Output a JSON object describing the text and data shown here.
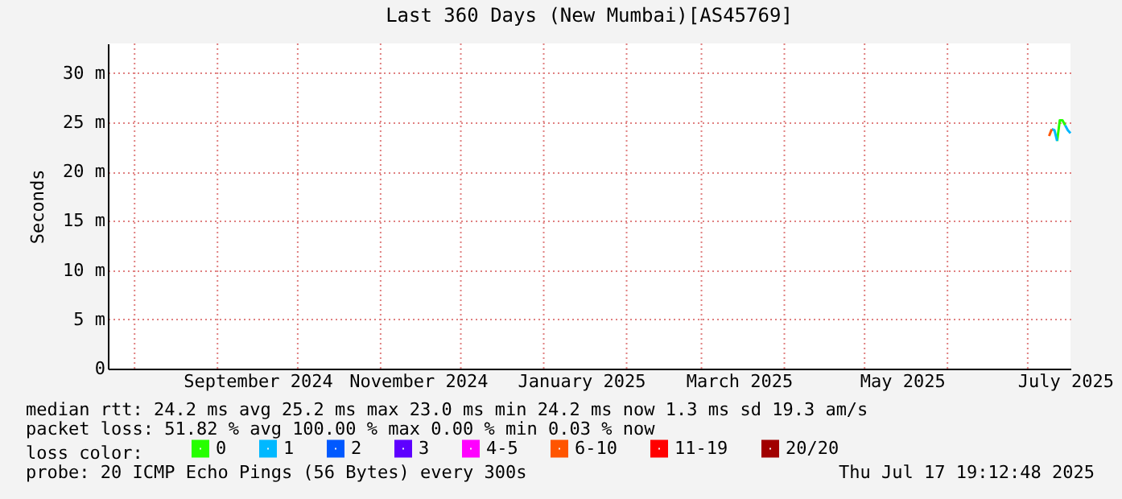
{
  "chart_data": {
    "type": "line",
    "title": "Last 360 Days (New Mumbai)[AS45769]",
    "ylabel": "Seconds",
    "legend_title": "loss color:",
    "legend": "bottom",
    "grid": true,
    "line_style": "solid",
    "marker": "none",
    "xlim": [
      "2024-07-22",
      "2025-07-17"
    ],
    "xticks": [
      {
        "value": "2024-08-01",
        "label": null
      },
      {
        "value": "2024-09-01",
        "label": null
      },
      {
        "value": "2024-09-16",
        "label": "September 2024"
      },
      {
        "value": "2024-10-01",
        "label": null
      },
      {
        "value": "2024-11-01",
        "label": null
      },
      {
        "value": "2024-11-15",
        "label": "November 2024"
      },
      {
        "value": "2024-12-01",
        "label": null
      },
      {
        "value": "2025-01-01",
        "label": null
      },
      {
        "value": "2025-01-15",
        "label": "January 2025"
      },
      {
        "value": "2025-02-01",
        "label": null
      },
      {
        "value": "2025-03-01",
        "label": null
      },
      {
        "value": "2025-03-15",
        "label": "March 2025"
      },
      {
        "value": "2025-04-01",
        "label": null
      },
      {
        "value": "2025-05-01",
        "label": null
      },
      {
        "value": "2025-05-15",
        "label": "May 2025"
      },
      {
        "value": "2025-06-01",
        "label": null
      },
      {
        "value": "2025-07-01",
        "label": null
      },
      {
        "value": "2025-07-15",
        "label": "July 2025"
      }
    ],
    "ylim": [
      0,
      33
    ],
    "yticks": [
      0,
      {
        "value": 5,
        "label": "5 m"
      },
      {
        "value": 10,
        "label": "10 m"
      },
      {
        "value": 15,
        "label": "15 m"
      },
      {
        "value": 20,
        "label": "20 m"
      },
      {
        "value": 25,
        "label": "25 m"
      },
      {
        "value": 30,
        "label": "30 m"
      }
    ],
    "series": [
      {
        "name": "0",
        "color": "#26ff00",
        "x": [
          "2025-07-12",
          "2025-07-13",
          "2025-07-14",
          "2025-07-15"
        ],
        "values": [
          23.1,
          25.2,
          25.2,
          24.7
        ]
      },
      {
        "name": "1",
        "color": "#00b8ff",
        "x": [
          "2025-07-10",
          "2025-07-11",
          "2025-07-12",
          "2025-07-13",
          "2025-07-14",
          "2025-07-15",
          "2025-07-16",
          "2025-07-17"
        ],
        "values": [
          24.3,
          24.2,
          23.1,
          null,
          null,
          24.7,
          24.2,
          23.9
        ]
      },
      {
        "name": "2",
        "color": "#0059ff"
      },
      {
        "name": "3",
        "color": "#5e00ff"
      },
      {
        "name": "4-5",
        "color": "#ff00ff"
      },
      {
        "name": "6-10",
        "color": "#ff5500",
        "x": [
          "2025-07-09",
          "2025-07-10"
        ],
        "values": [
          23.6,
          24.3
        ]
      },
      {
        "name": "11-19",
        "color": "#ff0000"
      },
      {
        "name": "20/20",
        "color": "#a10000"
      }
    ],
    "annotations": [
      "median rtt:  24.2 ms avg  25.2 ms max  23.0 ms min  24.2 ms now  1.3 ms sd  19.3   am/s",
      "packet loss: 51.82 % avg  100.00 % max  0.00 % min  0.03 % now",
      "probe:       20 ICMP Echo Pings (56 Bytes) every 300s",
      "Thu Jul 17 19:12:48 2025"
    ]
  }
}
